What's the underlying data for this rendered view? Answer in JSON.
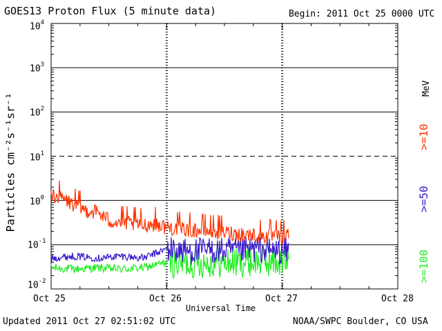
{
  "header": {
    "title": "GOES13 Proton Flux (5 minute data)",
    "begin": "Begin: 2011 Oct 25 0000 UTC"
  },
  "footer": {
    "updated": "Updated 2011 Oct 27 02:51:02 UTC",
    "credit": "NOAA/SWPC Boulder, CO USA"
  },
  "chart_data": {
    "type": "line",
    "title": "GOES13 Proton Flux (5 minute data)",
    "xlabel": "Universal Time",
    "ylabel": "Particles cm⁻²s⁻¹sr⁻¹",
    "yscale": "log",
    "ylim": [
      0.01,
      10000
    ],
    "xlim_days": [
      0,
      3
    ],
    "x_ticks": [
      "Oct 25",
      "Oct 26",
      "Oct 27",
      "Oct 28"
    ],
    "y_ticks": [
      {
        "base": "10",
        "exp": "4"
      },
      {
        "base": "10",
        "exp": "3"
      },
      {
        "base": "10",
        "exp": "2"
      },
      {
        "base": "10",
        "exp": "1"
      },
      {
        "base": "10",
        "exp": "0"
      },
      {
        "base": "10",
        "exp": "-1"
      },
      {
        "base": "10",
        "exp": "-2"
      }
    ],
    "threshold_line": {
      "value": 10,
      "style": "dashed"
    },
    "series": [
      {
        "name": ">=10 MeV",
        "label": ">=10",
        "unit": "MeV",
        "color": "#ff3300",
        "x_days": [
          0,
          0.1,
          0.2,
          0.3,
          0.4,
          0.5,
          0.6,
          0.7,
          0.8,
          0.9,
          1.0,
          1.2,
          1.4,
          1.6,
          1.8,
          2.0,
          2.06
        ],
        "values": [
          1.4,
          1.1,
          0.8,
          0.6,
          0.55,
          0.35,
          0.32,
          0.3,
          0.28,
          0.3,
          0.25,
          0.22,
          0.2,
          0.18,
          0.16,
          0.15,
          0.17
        ]
      },
      {
        "name": ">=50 MeV",
        "label": ">=50",
        "unit": "MeV",
        "color": "#3a1acc",
        "x_days": [
          0,
          0.2,
          0.4,
          0.6,
          0.8,
          1.0,
          1.2,
          1.4,
          1.6,
          1.8,
          2.0,
          2.06
        ],
        "values": [
          0.05,
          0.055,
          0.05,
          0.055,
          0.05,
          0.08,
          0.07,
          0.075,
          0.07,
          0.08,
          0.07,
          0.075
        ]
      },
      {
        "name": ">=100 MeV",
        "label": ">=100",
        "unit": "MeV",
        "color": "#22ee22",
        "x_days": [
          0,
          0.2,
          0.4,
          0.6,
          0.8,
          1.0,
          1.2,
          1.4,
          1.6,
          1.8,
          2.0,
          2.06
        ],
        "values": [
          0.03,
          0.028,
          0.03,
          0.028,
          0.03,
          0.04,
          0.038,
          0.04,
          0.04,
          0.042,
          0.04,
          0.04
        ]
      }
    ]
  }
}
